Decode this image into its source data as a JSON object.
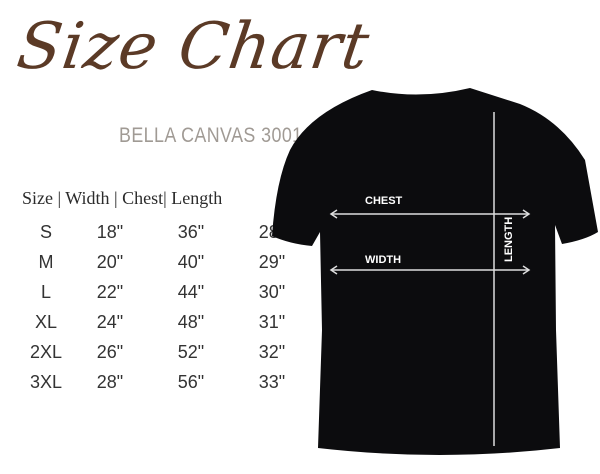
{
  "title": "Size Chart",
  "subtitle": "BELLA CANVAS 3001",
  "table": {
    "header": "Size | Width | Chest| Length",
    "rows": [
      [
        "S",
        "18\"",
        "36\"",
        "28\""
      ],
      [
        "M",
        "20\"",
        "40\"",
        "29\""
      ],
      [
        "L",
        "22\"",
        "44\"",
        "30\""
      ],
      [
        "XL",
        "24\"",
        "48\"",
        "31\""
      ],
      [
        "2XL",
        "26\"",
        "52\"",
        "32\""
      ],
      [
        "3XL",
        "28\"",
        "56\"",
        "33\""
      ]
    ]
  },
  "diagram": {
    "chest": "CHEST",
    "width": "WIDTH",
    "length": "LENGTH",
    "shirt_color": "#0c0c0e"
  },
  "colors": {
    "title": "#5b3a26",
    "subtitle": "#a09a94"
  }
}
